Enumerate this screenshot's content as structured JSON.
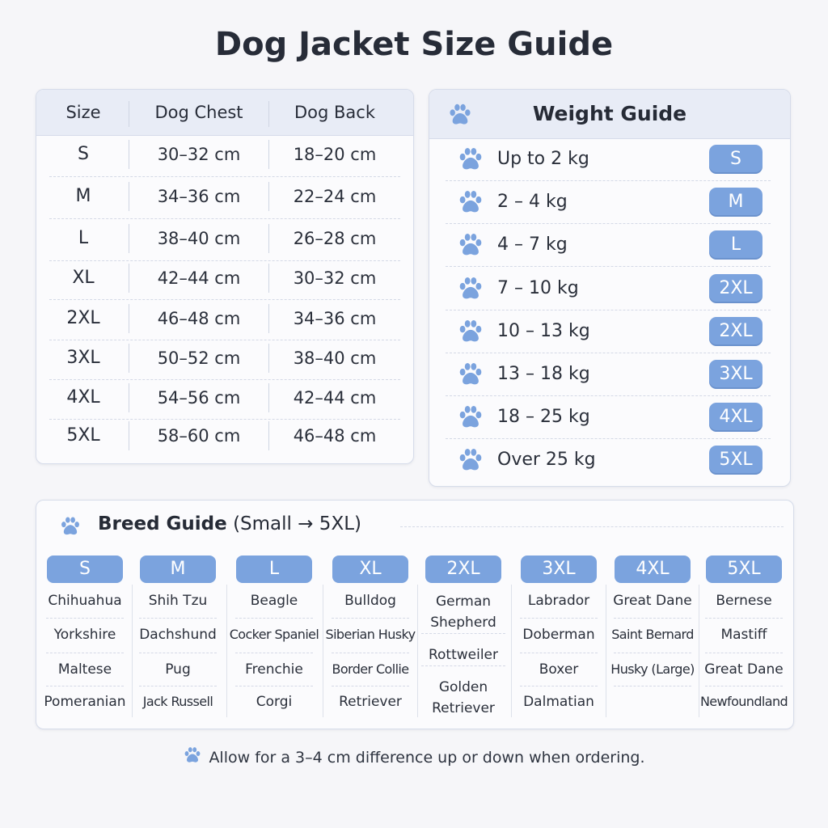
{
  "title": "Dog Jacket Size Guide",
  "size_table": {
    "headers": [
      "Size",
      "Dog Chest",
      "Dog Back"
    ],
    "rows": [
      [
        "S",
        "30–32 cm",
        "18–20 cm"
      ],
      [
        "M",
        "34–36 cm",
        "22–24 cm"
      ],
      [
        "L",
        "38–40 cm",
        "26–28 cm"
      ],
      [
        "XL",
        "42–44 cm",
        "30–32 cm"
      ],
      [
        "2XL",
        "46–48 cm",
        "34–36 cm"
      ],
      [
        "3XL",
        "50–52 cm",
        "38–40 cm"
      ],
      [
        "4XL",
        "54–56 cm",
        "42–44 cm"
      ],
      [
        "5XL",
        "58–60 cm",
        "46–48 cm"
      ]
    ]
  },
  "weight_guide": {
    "title": "Weight Guide",
    "icon": "paw-icon",
    "rows": [
      {
        "weight": "Up to 2 kg",
        "size": "S"
      },
      {
        "weight": "2 – 4 kg",
        "size": "M"
      },
      {
        "weight": "4 – 7 kg",
        "size": "L"
      },
      {
        "weight": "7 – 10 kg",
        "size": "2XL"
      },
      {
        "weight": "10 – 13 kg",
        "size": "2XL"
      },
      {
        "weight": "13 – 18 kg",
        "size": "3XL"
      },
      {
        "weight": "18 – 25 kg",
        "size": "4XL"
      },
      {
        "weight": "Over 25 kg",
        "size": "5XL"
      }
    ]
  },
  "breed_guide": {
    "title_bold": "Breed Guide",
    "title_rest": "(Small → 5XL)",
    "columns": [
      {
        "size": "S",
        "breeds": [
          "Chihuahua",
          "Yorkshire",
          "Maltese",
          "Pomeranian"
        ]
      },
      {
        "size": "M",
        "breeds": [
          "Shih Tzu",
          "Dachshund",
          "Pug",
          "Jack Russell"
        ]
      },
      {
        "size": "L",
        "breeds": [
          "Beagle",
          "Cocker Spaniel",
          "Frenchie",
          "Corgi"
        ]
      },
      {
        "size": "XL",
        "breeds": [
          "Bulldog",
          "Siberian Husky",
          "Border Collie",
          "Retriever"
        ]
      },
      {
        "size": "2XL",
        "breeds": [
          "German Shepherd",
          "Rottweiler",
          "Golden Retriever"
        ]
      },
      {
        "size": "3XL",
        "breeds": [
          "Labrador",
          "Doberman",
          "Boxer",
          "Dalmatian"
        ]
      },
      {
        "size": "4XL",
        "breeds": [
          "Great Dane",
          "Saint Bernard",
          "Husky (Large)"
        ]
      },
      {
        "size": "5XL",
        "breeds": [
          "Bernese",
          "Mastiff",
          "Great Dane",
          "Newfoundland"
        ]
      }
    ]
  },
  "footnote": "Allow for a 3–4 cm difference up or down when ordering.",
  "colors": {
    "badge": "#7ba3de",
    "header_bg": "#e8ecf6",
    "paw": "#7ba3de"
  }
}
